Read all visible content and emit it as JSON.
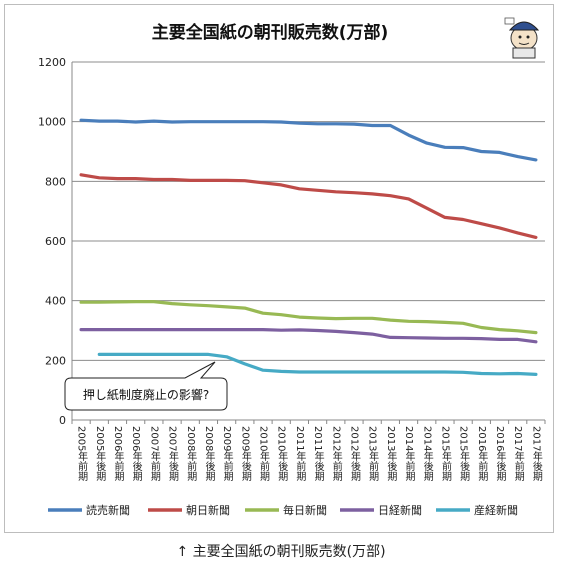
{
  "caption": "↑ 主要全国紙の朝刊販売数(万部)",
  "mascot_icon": "newspaper-reader-mascot-icon",
  "chart_data": {
    "type": "line",
    "title": "主要全国紙の朝刊販売数(万部)",
    "xlabel": "",
    "ylabel": "",
    "ylim": [
      0,
      1200
    ],
    "yticks": [
      0,
      200,
      400,
      600,
      800,
      1000,
      1200
    ],
    "grid": true,
    "legend": "bottom",
    "categories": [
      "2005年前期",
      "2005年後期",
      "2006年前期",
      "2006年後期",
      "2007年前期",
      "2007年後期",
      "2008年前期",
      "2008年後期",
      "2009年前期",
      "2009年後期",
      "2010年前期",
      "2010年後期",
      "2011年前期",
      "2011年後期",
      "2012年前期",
      "2012年後期",
      "2013年前期",
      "2013年後期",
      "2014年前期",
      "2014年後期",
      "2015年前期",
      "2015年後期",
      "2016年前期",
      "2016年後期",
      "2017年前期",
      "2017年後期"
    ],
    "series": [
      {
        "name": "読売新聞",
        "color": "#4a7ebb",
        "values": [
          1005,
          1002,
          1002,
          999,
          1002,
          999,
          1000,
          1000,
          1000,
          1000,
          1000,
          999,
          995,
          993,
          993,
          992,
          987,
          987,
          955,
          928,
          914,
          913,
          900,
          897,
          883,
          872
        ]
      },
      {
        "name": "朝日新聞",
        "color": "#be4b48",
        "values": [
          822,
          812,
          809,
          809,
          806,
          806,
          803,
          803,
          803,
          802,
          795,
          788,
          775,
          770,
          765,
          762,
          758,
          752,
          741,
          710,
          679,
          672,
          658,
          644,
          627,
          612
        ]
      },
      {
        "name": "毎日新聞",
        "color": "#98b954",
        "values": [
          395,
          395,
          396,
          397,
          397,
          390,
          386,
          383,
          379,
          375,
          358,
          353,
          345,
          342,
          340,
          341,
          341,
          335,
          331,
          330,
          327,
          324,
          310,
          303,
          299,
          293
        ]
      },
      {
        "name": "日経新聞",
        "color": "#7d60a0",
        "values": [
          303,
          303,
          303,
          303,
          303,
          303,
          303,
          303,
          303,
          303,
          303,
          301,
          302,
          300,
          297,
          293,
          288,
          277,
          276,
          275,
          274,
          274,
          273,
          270,
          270,
          262
        ]
      },
      {
        "name": "産経新聞",
        "color": "#46aac5",
        "values": [
          null,
          220,
          220,
          220,
          220,
          220,
          220,
          220,
          212,
          188,
          167,
          163,
          161,
          161,
          161,
          161,
          161,
          161,
          161,
          161,
          161,
          160,
          156,
          155,
          156,
          153
        ]
      }
    ],
    "annotation": "押し紙制度廃止の影響?"
  }
}
